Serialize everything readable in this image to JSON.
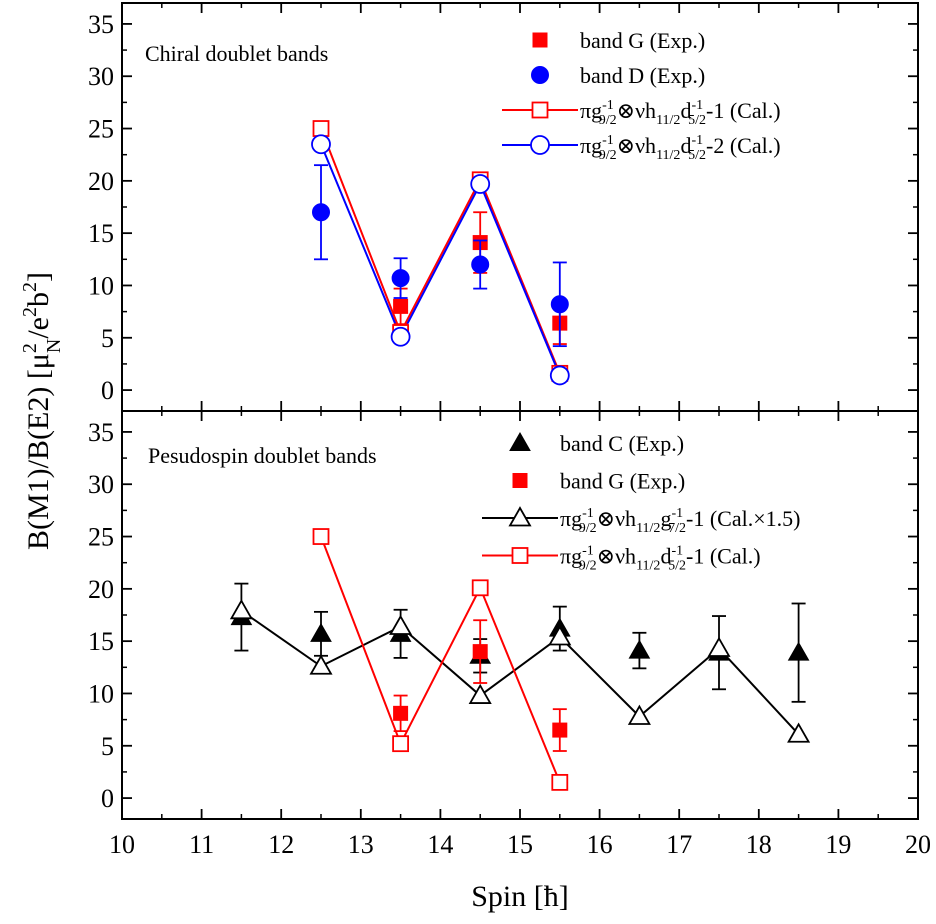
{
  "chart_data": [
    {
      "type": "scatter",
      "panel": "top",
      "title": "Chiral doublet bands",
      "xlabel": "Spin [ħ]",
      "ylabel": "B(M1)/B(E2) [μN²/e²b²]",
      "xlim": [
        10,
        20
      ],
      "ylim": [
        -2,
        37
      ],
      "x_ticks": [
        10,
        11,
        12,
        13,
        14,
        15,
        16,
        17,
        18,
        19,
        20
      ],
      "y_ticks": [
        0,
        5,
        10,
        15,
        20,
        25,
        30,
        35
      ],
      "legend_position": "top-right",
      "series": [
        {
          "name": "band G (Exp.)",
          "marker": "filled-square",
          "color": "#ff0000",
          "points": [
            {
              "x": 13.5,
              "y": 8.0,
              "err": 1.7
            },
            {
              "x": 14.5,
              "y": 14.1,
              "err": 2.9
            },
            {
              "x": 15.5,
              "y": 6.4,
              "err": 2.0
            }
          ]
        },
        {
          "name": "band D (Exp.)",
          "marker": "filled-circle",
          "color": "#0000ff",
          "points": [
            {
              "x": 12.5,
              "y": 17.0,
              "err": 4.5
            },
            {
              "x": 13.5,
              "y": 10.7,
              "err": 1.9
            },
            {
              "x": 14.5,
              "y": 12.0,
              "err": 2.3
            },
            {
              "x": 15.5,
              "y": 8.2,
              "err": 4.0
            }
          ]
        },
        {
          "name": "πg9/2-1⊗νh11/2d5/2-1-1 (Cal.)",
          "marker": "open-square-line",
          "color": "#ff0000",
          "points": [
            {
              "x": 12.5,
              "y": 25.0
            },
            {
              "x": 13.5,
              "y": 5.5
            },
            {
              "x": 14.5,
              "y": 20.1
            },
            {
              "x": 15.5,
              "y": 1.6
            }
          ]
        },
        {
          "name": "πg9/2-1⊗νh11/2d5/2-1-2 (Cal.)",
          "marker": "open-circle-line",
          "color": "#0000ff",
          "points": [
            {
              "x": 12.5,
              "y": 23.5
            },
            {
              "x": 13.5,
              "y": 5.1
            },
            {
              "x": 14.5,
              "y": 19.7
            },
            {
              "x": 15.5,
              "y": 1.4
            }
          ]
        }
      ]
    },
    {
      "type": "scatter",
      "panel": "bottom",
      "title": "Pesudospin doublet bands",
      "xlabel": "Spin [ħ]",
      "ylabel": "B(M1)/B(E2) [μN²/e²b²]",
      "xlim": [
        10,
        20
      ],
      "ylim": [
        -2,
        37
      ],
      "x_ticks": [
        10,
        11,
        12,
        13,
        14,
        15,
        16,
        17,
        18,
        19,
        20
      ],
      "y_ticks": [
        0,
        5,
        10,
        15,
        20,
        25,
        30,
        35
      ],
      "legend_position": "top-right",
      "series": [
        {
          "name": "band C (Exp.)",
          "marker": "filled-triangle",
          "color": "#000000",
          "points": [
            {
              "x": 11.5,
              "y": 17.3,
              "err": 3.2
            },
            {
              "x": 12.5,
              "y": 15.7,
              "err": 2.1
            },
            {
              "x": 13.5,
              "y": 15.7,
              "err": 2.3
            },
            {
              "x": 14.5,
              "y": 13.6,
              "err": 1.6
            },
            {
              "x": 15.5,
              "y": 16.2,
              "err": 2.1
            },
            {
              "x": 16.5,
              "y": 14.1,
              "err": 1.7
            },
            {
              "x": 17.5,
              "y": 13.9,
              "err": 3.5
            },
            {
              "x": 18.5,
              "y": 13.9,
              "err": 4.7
            }
          ]
        },
        {
          "name": "band G (Exp.)",
          "marker": "filled-square",
          "color": "#ff0000",
          "points": [
            {
              "x": 13.5,
              "y": 8.1,
              "err": 1.7
            },
            {
              "x": 14.5,
              "y": 14.0,
              "err": 3.0
            },
            {
              "x": 15.5,
              "y": 6.5,
              "err": 2.0
            }
          ]
        },
        {
          "name": "πg9/2-1⊗νh11/2g7/2-1-1 (Cal.×1.5)",
          "marker": "open-triangle-line",
          "color": "#000000",
          "points": [
            {
              "x": 11.5,
              "y": 17.9
            },
            {
              "x": 12.5,
              "y": 12.6
            },
            {
              "x": 13.5,
              "y": 16.4
            },
            {
              "x": 14.5,
              "y": 9.8
            },
            {
              "x": 15.5,
              "y": 15.4
            },
            {
              "x": 16.5,
              "y": 7.8
            },
            {
              "x": 17.5,
              "y": 14.3
            },
            {
              "x": 18.5,
              "y": 6.1
            }
          ]
        },
        {
          "name": "πg9/2-1⊗νh11/2d5/2-1-1 (Cal.)",
          "marker": "open-square-line",
          "color": "#ff0000",
          "points": [
            {
              "x": 12.5,
              "y": 25.0
            },
            {
              "x": 13.5,
              "y": 5.2
            },
            {
              "x": 14.5,
              "y": 20.1
            },
            {
              "x": 15.5,
              "y": 1.5
            }
          ]
        }
      ]
    }
  ]
}
